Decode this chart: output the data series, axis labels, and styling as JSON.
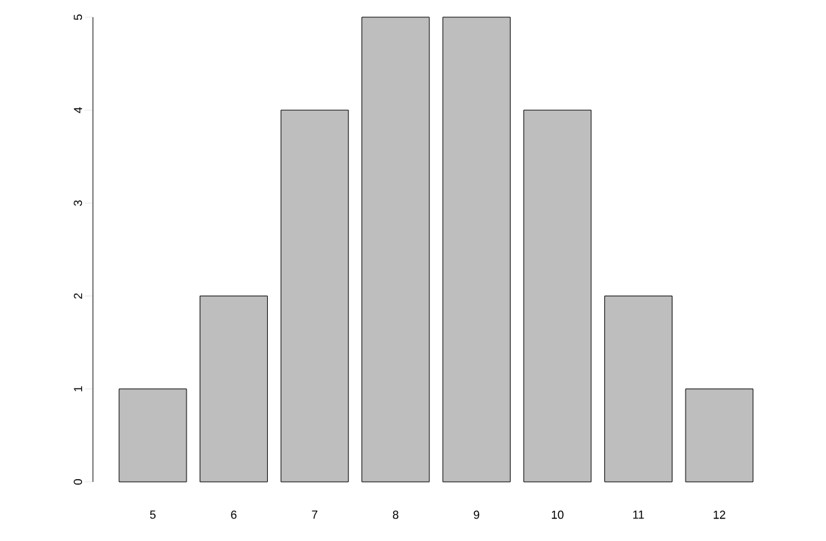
{
  "chart_data": {
    "type": "bar",
    "categories": [
      "5",
      "6",
      "7",
      "8",
      "9",
      "10",
      "11",
      "12"
    ],
    "values": [
      1,
      2,
      4,
      5,
      5,
      4,
      2,
      1
    ],
    "color": "#bebebe",
    "ylim": [
      0,
      5
    ],
    "yticks": [
      0,
      1,
      2,
      3,
      4,
      5
    ]
  }
}
